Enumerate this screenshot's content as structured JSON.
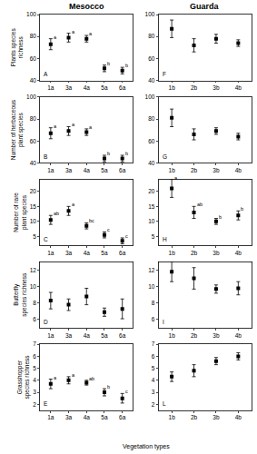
{
  "x_label": "Vegetation types",
  "chart_data": [
    {
      "type": "scatter",
      "title": "Mesocco",
      "panel": "A",
      "y_label": "Plants species\nrichness",
      "categories": [
        "1a",
        "3a",
        "4a",
        "5a",
        "6a"
      ],
      "values": [
        73,
        79,
        78,
        51,
        49
      ],
      "errors": [
        5,
        4,
        3,
        3,
        3
      ],
      "letters": [
        "a",
        "a",
        "a",
        "b",
        "b"
      ],
      "ylim": [
        40,
        100
      ],
      "yticks": [
        40,
        60,
        80,
        100
      ],
      "color": "#000000",
      "marker": "square"
    },
    {
      "type": "scatter",
      "panel": "B",
      "y_label": "Number of herbaceous\nplant species",
      "categories": [
        "1a",
        "3a",
        "4a",
        "5a",
        "6a"
      ],
      "values": [
        67,
        69,
        68,
        44,
        44
      ],
      "errors": [
        5,
        4,
        3,
        3,
        3
      ],
      "letters": [
        "a",
        "a",
        "a",
        "b",
        "b"
      ],
      "ylim": [
        40,
        100
      ],
      "yticks": [
        40,
        60,
        80,
        100
      ],
      "color": "#000000",
      "marker": "square"
    },
    {
      "type": "scatter",
      "panel": "C",
      "y_label": "Number of rare\nplant species",
      "categories": [
        "1a",
        "3a",
        "4a",
        "5a",
        "6a"
      ],
      "values": [
        10.5,
        13.5,
        8.5,
        5.5,
        3.5
      ],
      "errors": [
        1.5,
        1.5,
        1,
        1,
        1
      ],
      "letters": [
        "ab",
        "a",
        "bc",
        "c",
        "c"
      ],
      "ylim": [
        2,
        24
      ],
      "yticks": [
        5,
        10,
        15,
        20
      ],
      "color": "#000000",
      "marker": "square"
    },
    {
      "type": "scatter",
      "panel": "D",
      "y_label": "Butterfly\nspecies richness",
      "categories": [
        "1a",
        "3a",
        "4a",
        "5a",
        "6a"
      ],
      "values": [
        8.3,
        7.8,
        8.8,
        6.9,
        7.3
      ],
      "errors": [
        1,
        0.7,
        1,
        0.5,
        1.2
      ],
      "ylim": [
        5,
        13
      ],
      "yticks": [
        6,
        8,
        10,
        12
      ],
      "color": "#000000",
      "marker": "square"
    },
    {
      "type": "scatter",
      "panel": "E",
      "y_label": "Grasshopper\nspecies richness",
      "categories": [
        "1a",
        "3a",
        "4a",
        "5a",
        "6a"
      ],
      "values": [
        3.7,
        4.0,
        3.8,
        3.0,
        2.5
      ],
      "errors": [
        0.4,
        0.3,
        0.2,
        0.3,
        0.4
      ],
      "letters": [
        "a",
        "a",
        "ab",
        "b",
        "c"
      ],
      "ylim": [
        1.5,
        7
      ],
      "yticks": [
        2,
        3,
        4,
        5,
        6,
        7
      ],
      "color": "#000000",
      "marker": "square"
    },
    {
      "type": "scatter",
      "title": "Guarda",
      "panel": "F",
      "categories": [
        "1b",
        "2b",
        "3b",
        "4b"
      ],
      "values": [
        87,
        72,
        78,
        74
      ],
      "errors": [
        8,
        6,
        4,
        3
      ],
      "ylim": [
        40,
        100
      ],
      "yticks": [
        40,
        60,
        80,
        100
      ],
      "color": "#000000",
      "marker": "square"
    },
    {
      "type": "scatter",
      "panel": "G",
      "categories": [
        "1b",
        "2b",
        "3b",
        "4b"
      ],
      "values": [
        81,
        66,
        69,
        64
      ],
      "errors": [
        8,
        5,
        3,
        3
      ],
      "ylim": [
        40,
        100
      ],
      "yticks": [
        40,
        60,
        80,
        100
      ],
      "color": "#000000",
      "marker": "square"
    },
    {
      "type": "scatter",
      "panel": "H",
      "categories": [
        "1b",
        "2b",
        "3b",
        "4b"
      ],
      "values": [
        21,
        13,
        10,
        12
      ],
      "errors": [
        3,
        2,
        1,
        1.5
      ],
      "letters": [
        "a",
        "ab",
        "b",
        "b"
      ],
      "ylim": [
        2,
        24
      ],
      "yticks": [
        5,
        10,
        15,
        20
      ],
      "color": "#000000",
      "marker": "square"
    },
    {
      "type": "scatter",
      "panel": "I",
      "categories": [
        "1b",
        "2b",
        "3b",
        "4b"
      ],
      "values": [
        11.8,
        11,
        9.7,
        9.8
      ],
      "errors": [
        1.2,
        1.3,
        0.5,
        0.8
      ],
      "ylim": [
        5,
        13
      ],
      "yticks": [
        6,
        8,
        10,
        12
      ],
      "color": "#000000",
      "marker": "square"
    },
    {
      "type": "scatter",
      "panel": "L",
      "categories": [
        "1b",
        "2b",
        "3b",
        "4b"
      ],
      "values": [
        4.3,
        4.8,
        5.6,
        6.0
      ],
      "errors": [
        0.4,
        0.5,
        0.3,
        0.3
      ],
      "ylim": [
        1.5,
        7
      ],
      "yticks": [
        2,
        3,
        4,
        5,
        6,
        7
      ],
      "color": "#000000",
      "marker": "square"
    }
  ]
}
